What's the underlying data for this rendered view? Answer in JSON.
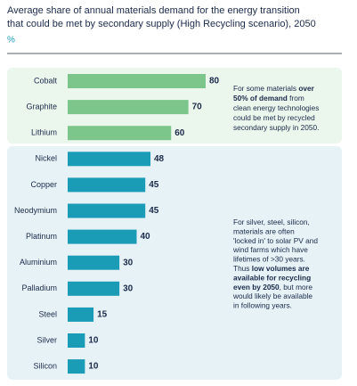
{
  "chart_data": {
    "type": "bar",
    "title_lines": [
      "Average share of annual materials demand for the energy transition",
      "that could be met by secondary supply (High Recycling scenario), 2050"
    ],
    "subtitle": "%",
    "categories": [
      "Cobalt",
      "Graphite",
      "Lithium",
      "Nickel",
      "Copper",
      "Neodymium",
      "Platinum",
      "Aluminium",
      "Palladium",
      "Steel",
      "Silver",
      "Silicon"
    ],
    "values": [
      80,
      70,
      60,
      48,
      45,
      45,
      40,
      30,
      30,
      15,
      10,
      10
    ],
    "colors": [
      "#7cc68b",
      "#7cc68b",
      "#7cc68b",
      "#1a9bb6",
      "#1a9bb6",
      "#1a9bb6",
      "#1a9bb6",
      "#1a9bb6",
      "#1a9bb6",
      "#1a9bb6",
      "#1a9bb6",
      "#1a9bb6"
    ],
    "annotations": [
      {
        "lines": [
          [
            {
              "text": "For some materials ",
              "bold": false
            },
            {
              "text": "over",
              "bold": true
            }
          ],
          [
            {
              "text": "50% of demand",
              "bold": true
            },
            {
              "text": " from",
              "bold": false
            }
          ],
          [
            {
              "text": "clean energy technologies",
              "bold": false
            }
          ],
          [
            {
              "text": "could be met by recycled",
              "bold": false
            }
          ],
          [
            {
              "text": "secondary supply in 2050.",
              "bold": false
            }
          ]
        ]
      },
      {
        "lines": [
          [
            {
              "text": "For silver, steel, silicon,",
              "bold": false
            }
          ],
          [
            {
              "text": "materials are often",
              "bold": false
            }
          ],
          [
            {
              "text": "'locked in' to solar PV and",
              "bold": false
            }
          ],
          [
            {
              "text": "wind farms which have",
              "bold": false
            }
          ],
          [
            {
              "text": "lifetimes of >30 years.",
              "bold": false
            }
          ],
          [
            {
              "text": "Thus ",
              "bold": false
            },
            {
              "text": "low volumes are",
              "bold": true
            }
          ],
          [
            {
              "text": "available for recycling",
              "bold": true
            }
          ],
          [
            {
              "text": "even by 2050",
              "bold": true
            },
            {
              "text": ", but more",
              "bold": false
            }
          ],
          [
            {
              "text": "would likely be available",
              "bold": false
            }
          ],
          [
            {
              "text": "in following years.",
              "bold": false
            }
          ]
        ]
      }
    ]
  }
}
